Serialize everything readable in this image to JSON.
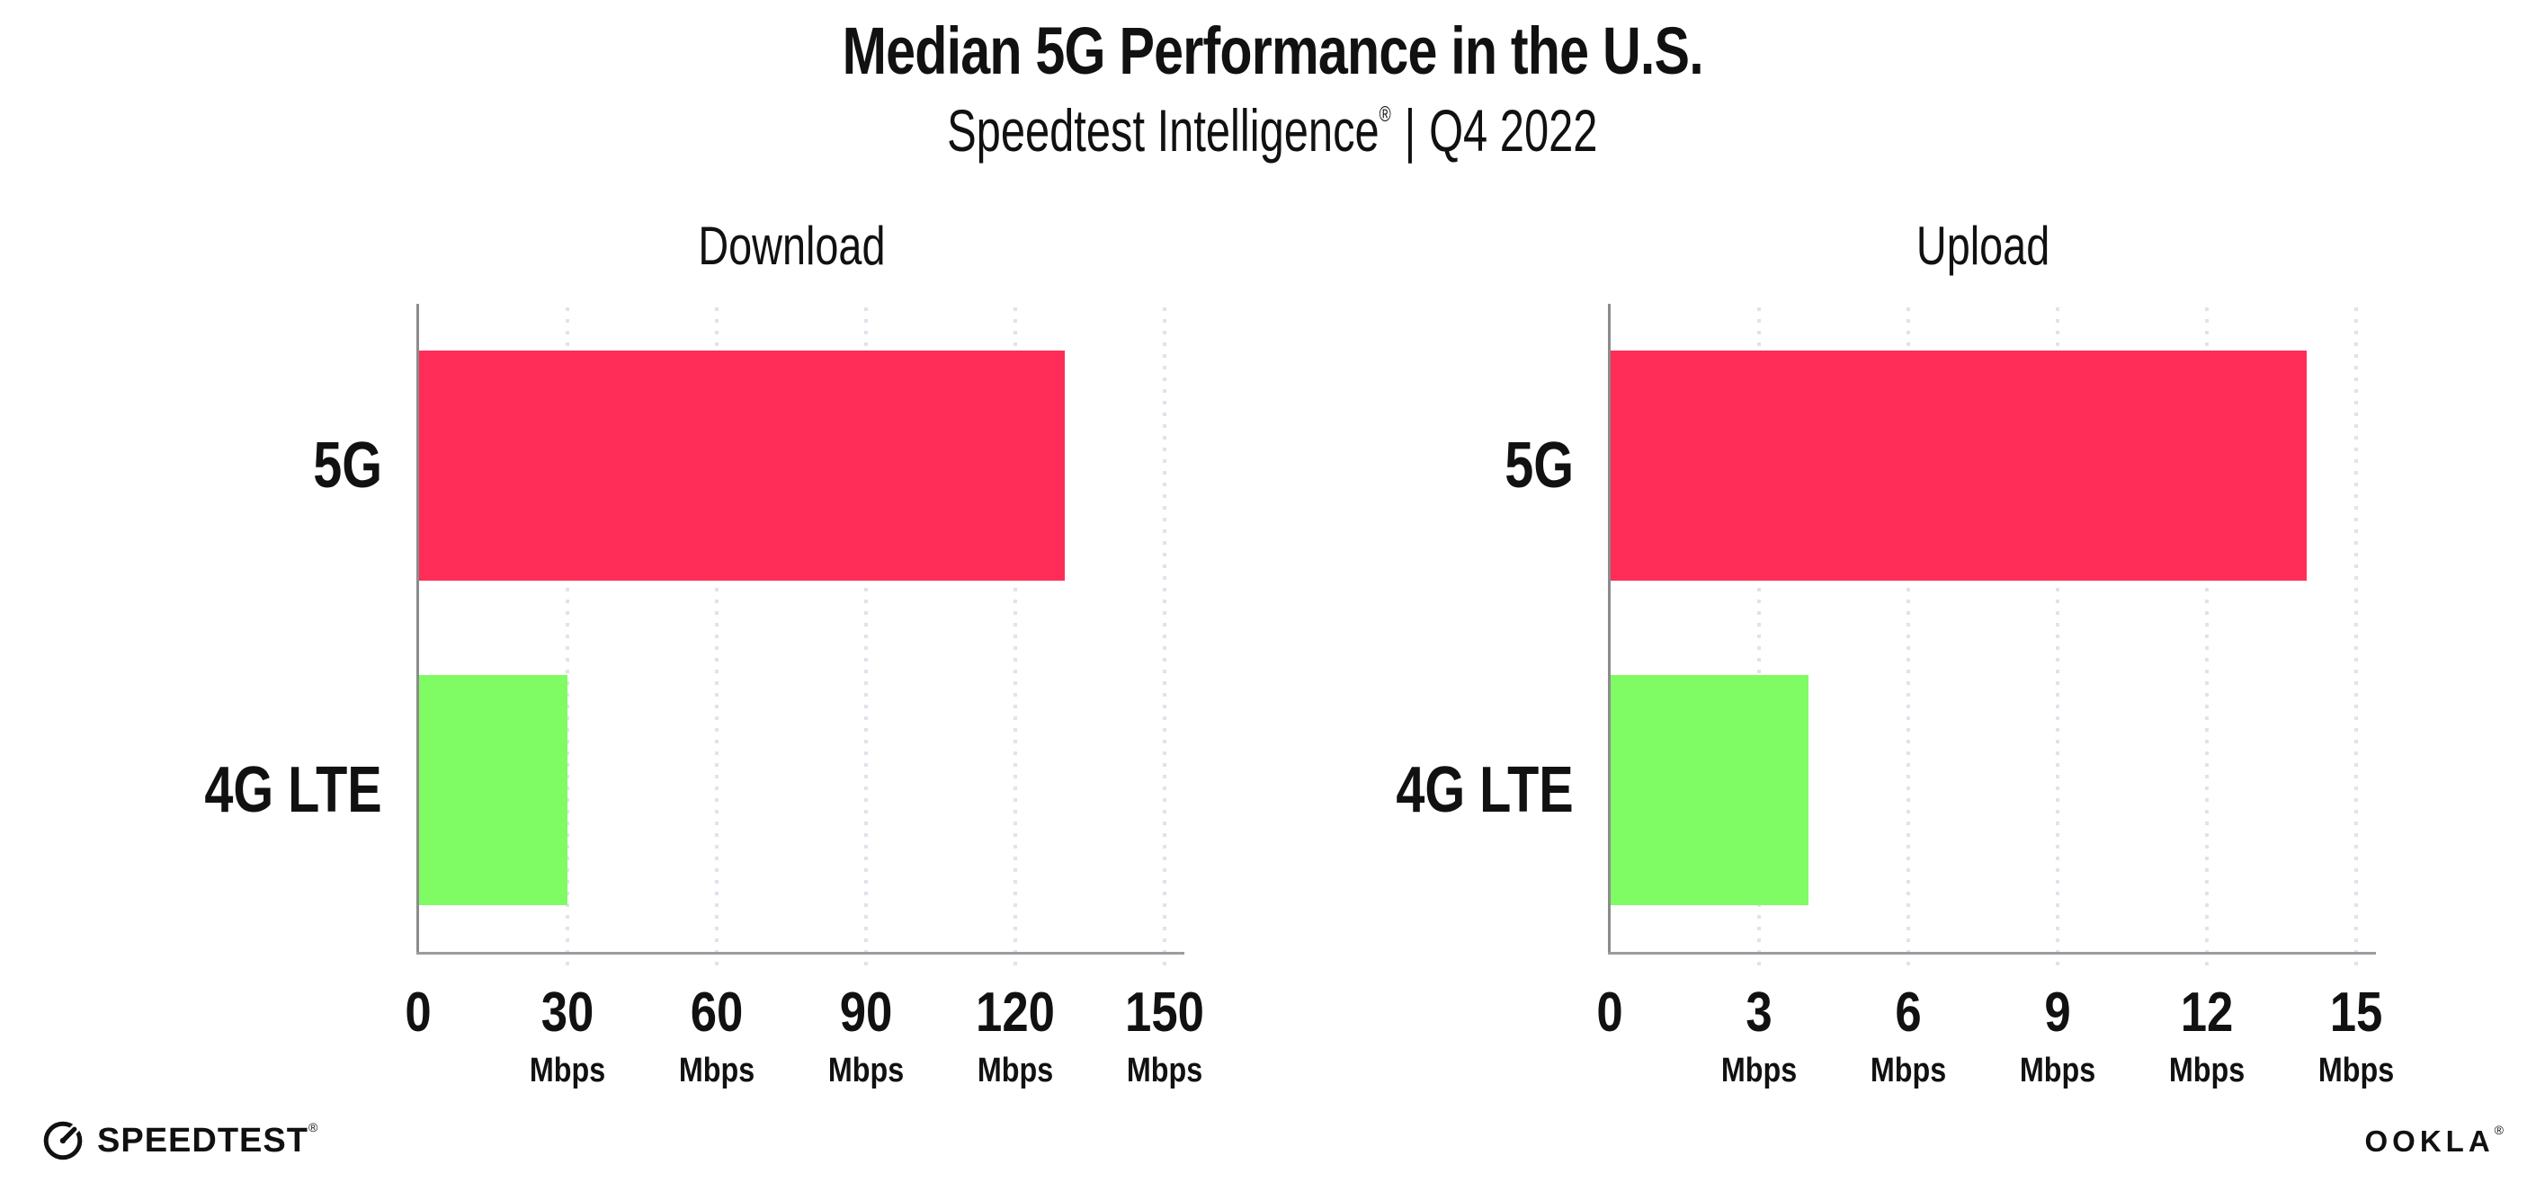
{
  "header": {
    "title": "Median 5G Performance in the U.S.",
    "subtitle": {
      "product": "Speedtest Intelligence",
      "registered_mark": "®",
      "separator": "|",
      "period": "Q4 2022"
    }
  },
  "chart_data": [
    {
      "type": "bar",
      "orientation": "horizontal",
      "title": "Download",
      "categories": [
        "5G",
        "4G LTE"
      ],
      "values": [
        130,
        30
      ],
      "unit": "Mbps",
      "xlim": [
        0,
        150
      ],
      "xticks": [
        0,
        30,
        60,
        90,
        120,
        150
      ],
      "grid": "dotted vertical gridlines at each tick",
      "legend": "none",
      "colors": [
        "#FF2D58",
        "#7FFB63"
      ]
    },
    {
      "type": "bar",
      "orientation": "horizontal",
      "title": "Upload",
      "categories": [
        "5G",
        "4G LTE"
      ],
      "values": [
        14,
        4
      ],
      "unit": "Mbps",
      "xlim": [
        0,
        15
      ],
      "xticks": [
        0,
        3,
        6,
        9,
        12,
        15
      ],
      "grid": "dotted vertical gridlines at each tick",
      "legend": "none",
      "colors": [
        "#FF2D58",
        "#7FFB63"
      ]
    }
  ],
  "colors": {
    "bar_5g": "#FF2D58",
    "bar_4g_lte": "#7FFB63",
    "y_axis_line": "#8B8B8B",
    "x_axis_line": "#9B9BA1",
    "gridline_dots": "#E2E2EC",
    "text": "#111111",
    "background": "#FFFFFF"
  },
  "footer": {
    "speedtest_wordmark": "SPEEDTEST",
    "speedtest_trademark": "®",
    "speedtest_icon": "gauge-icon",
    "ookla_wordmark": "OOKLA",
    "ookla_trademark": "®"
  }
}
